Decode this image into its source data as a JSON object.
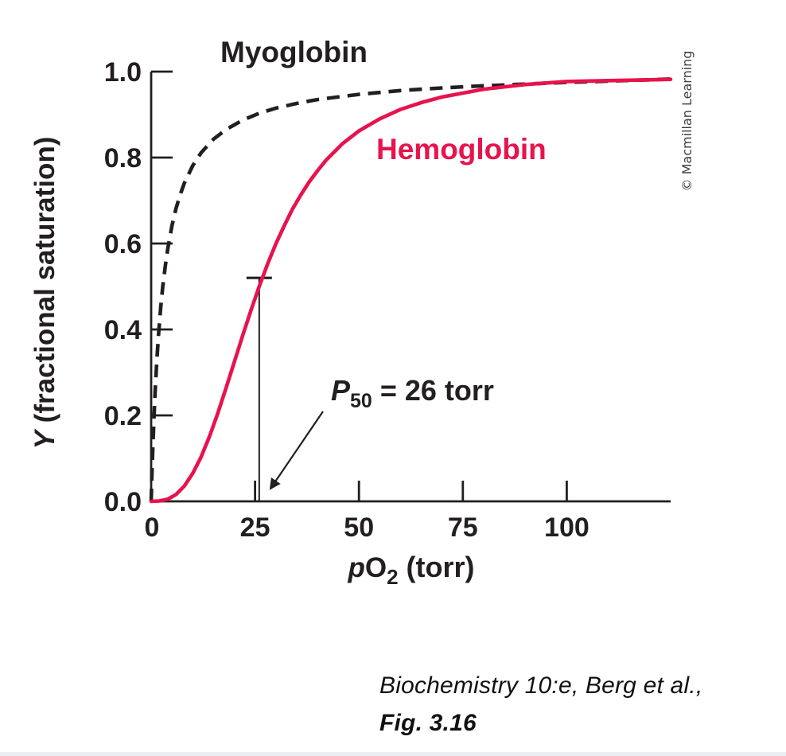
{
  "figure": {
    "credit": "© Macmillan Learning",
    "caption": {
      "line1": "Biochemistry 10:e, Berg et al.,",
      "line2": "Fig. 3.16"
    },
    "colors": {
      "ink": "#231f20",
      "hemoglobin_red": "#e8134c",
      "credit_gray": "#3f3f3f",
      "background": "#ffffff"
    }
  },
  "chart_data": {
    "type": "line",
    "title": "",
    "xlabel_parts": {
      "italic": "p",
      "main": "O",
      "sub": "2",
      "post": " (torr)"
    },
    "xlabel_plain": "pO2 (torr)",
    "ylabel_parts": {
      "italic": "Y",
      "rest": " (fractional saturation)"
    },
    "ylabel_plain": "Y (fractional saturation)",
    "xlim": [
      0,
      125
    ],
    "ylim": [
      0,
      1.0
    ],
    "x_ticks": [
      0,
      25,
      50,
      75,
      100
    ],
    "x_tick_labels": [
      "0",
      "25",
      "50",
      "75",
      "100"
    ],
    "y_ticks": [
      1.0,
      0.8,
      0.6,
      0.4,
      0.2,
      0.0
    ],
    "y_tick_labels": [
      "1.0",
      "0.8",
      "0.6",
      "0.4",
      "0.2",
      "0.0"
    ],
    "grid": false,
    "legend": "inline curve labels",
    "series": [
      {
        "name": "Myoglobin",
        "color": "#231f20",
        "line_style": "dashed",
        "points": [
          [
            0,
            0
          ],
          [
            0.2,
            0.067
          ],
          [
            0.4,
            0.125
          ],
          [
            0.7,
            0.2
          ],
          [
            1,
            0.263
          ],
          [
            1.4,
            0.333
          ],
          [
            1.8,
            0.391
          ],
          [
            2.3,
            0.451
          ],
          [
            2.8,
            0.5
          ],
          [
            3.4,
            0.548
          ],
          [
            4,
            0.588
          ],
          [
            5,
            0.641
          ],
          [
            6,
            0.682
          ],
          [
            7,
            0.714
          ],
          [
            8,
            0.741
          ],
          [
            10,
            0.781
          ],
          [
            12,
            0.811
          ],
          [
            15,
            0.843
          ],
          [
            18,
            0.865
          ],
          [
            22,
            0.887
          ],
          [
            26,
            0.903
          ],
          [
            30,
            0.915
          ],
          [
            35,
            0.926
          ],
          [
            40,
            0.935
          ],
          [
            50,
            0.947
          ],
          [
            60,
            0.956
          ],
          [
            70,
            0.962
          ],
          [
            80,
            0.967
          ],
          [
            90,
            0.971
          ],
          [
            100,
            0.975
          ],
          [
            110,
            0.978
          ],
          [
            120,
            0.981
          ],
          [
            125,
            0.983
          ]
        ]
      },
      {
        "name": "Hemoglobin",
        "color": "#e8134c",
        "line_style": "solid",
        "points": [
          [
            0,
            0
          ],
          [
            2,
            0.001
          ],
          [
            4,
            0.005
          ],
          [
            6,
            0.016
          ],
          [
            8,
            0.036
          ],
          [
            10,
            0.065
          ],
          [
            12,
            0.103
          ],
          [
            14,
            0.15
          ],
          [
            16,
            0.204
          ],
          [
            18,
            0.263
          ],
          [
            20,
            0.324
          ],
          [
            22,
            0.385
          ],
          [
            24,
            0.444
          ],
          [
            26,
            0.5
          ],
          [
            28,
            0.552
          ],
          [
            30,
            0.599
          ],
          [
            32,
            0.641
          ],
          [
            34,
            0.68
          ],
          [
            36,
            0.713
          ],
          [
            38,
            0.743
          ],
          [
            40,
            0.769
          ],
          [
            42,
            0.793
          ],
          [
            46,
            0.832
          ],
          [
            50,
            0.862
          ],
          [
            55,
            0.89
          ],
          [
            60,
            0.912
          ],
          [
            65,
            0.928
          ],
          [
            70,
            0.941
          ],
          [
            80,
            0.959
          ],
          [
            90,
            0.97
          ],
          [
            100,
            0.977
          ],
          [
            110,
            0.979
          ],
          [
            120,
            0.981
          ],
          [
            125,
            0.982
          ]
        ]
      }
    ],
    "annotation": {
      "text_italic": "P",
      "text_sub": "50",
      "text_rest": " = 26 torr",
      "p50_torr": 26,
      "marker_x": 26,
      "marker_y_top": 0.52
    }
  }
}
